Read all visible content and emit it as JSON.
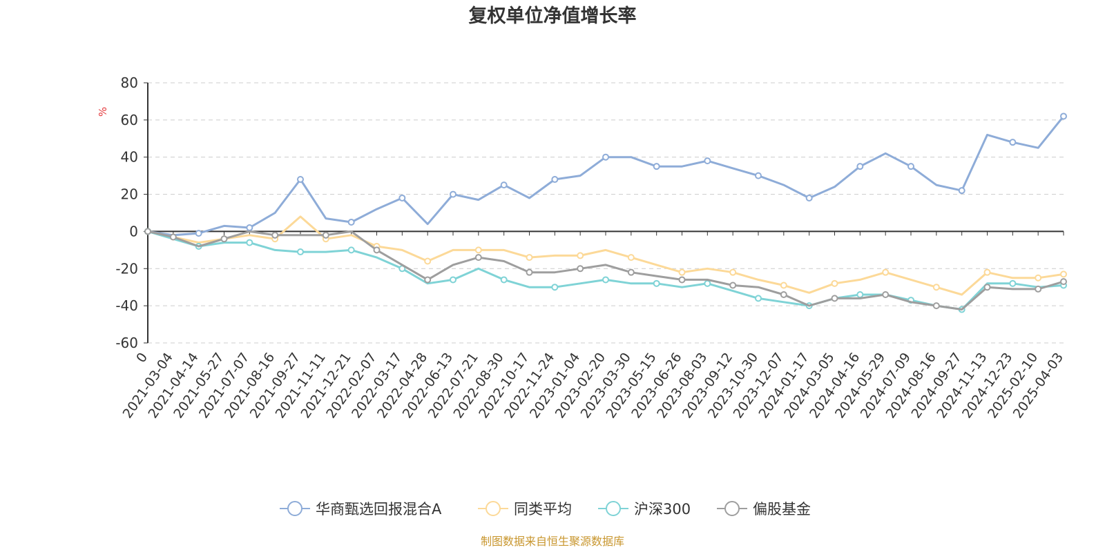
{
  "colors": {
    "fund": "#8eacd8",
    "peer": "#fcd998",
    "csi300": "#7fd3d6",
    "equity": "#9e9e9e",
    "unit": "#e4393c",
    "source": "#c8962e",
    "axis": "#333333",
    "grid": "#cccccc"
  },
  "chart_data": {
    "type": "line",
    "title": "复权单位净值增长率",
    "ylabel": "%",
    "ylim": [
      -60,
      80
    ],
    "yticks": [
      -60,
      -40,
      -20,
      0,
      20,
      40,
      60,
      80
    ],
    "x": [
      "0",
      "2021-03-04",
      "2021-04-14",
      "2021-05-27",
      "2021-07-07",
      "2021-08-16",
      "2021-09-27",
      "2021-11-11",
      "2021-12-21",
      "2022-02-07",
      "2022-03-17",
      "2022-04-28",
      "2022-06-13",
      "2022-07-21",
      "2022-08-30",
      "2022-10-17",
      "2022-11-24",
      "2023-01-04",
      "2023-02-20",
      "2023-03-30",
      "2023-05-15",
      "2023-06-26",
      "2023-08-03",
      "2023-09-12",
      "2023-10-30",
      "2023-12-07",
      "2024-01-17",
      "2024-03-05",
      "2024-04-16",
      "2024-05-29",
      "2024-07-09",
      "2024-08-16",
      "2024-09-27",
      "2024-11-13",
      "2024-12-23",
      "2025-02-10",
      "2025-04-03"
    ],
    "grid": true,
    "legend_position": "bottom",
    "series": [
      {
        "name": "华商甄选回报混合A",
        "color_key": "fund",
        "values": [
          0,
          -2,
          -1,
          3,
          2,
          10,
          28,
          7,
          5,
          12,
          18,
          4,
          20,
          17,
          25,
          18,
          28,
          30,
          40,
          40,
          35,
          35,
          38,
          34,
          30,
          25,
          18,
          24,
          35,
          42,
          35,
          25,
          22,
          52,
          48,
          45,
          62
        ]
      },
      {
        "name": "同类平均",
        "color_key": "peer",
        "values": [
          0,
          -3,
          -6,
          -4,
          -2,
          -4,
          8,
          -4,
          -2,
          -8,
          -10,
          -16,
          -10,
          -10,
          -10,
          -14,
          -13,
          -13,
          -10,
          -14,
          -18,
          -22,
          -20,
          -22,
          -26,
          -29,
          -33,
          -28,
          -26,
          -22,
          -26,
          -30,
          -34,
          -22,
          -25,
          -25,
          -23
        ]
      },
      {
        "name": "沪深300",
        "color_key": "csi300",
        "values": [
          0,
          -4,
          -8,
          -6,
          -6,
          -10,
          -11,
          -11,
          -10,
          -14,
          -20,
          -28,
          -26,
          -20,
          -26,
          -30,
          -30,
          -28,
          -26,
          -28,
          -28,
          -30,
          -28,
          -32,
          -36,
          -38,
          -40,
          -36,
          -34,
          -34,
          -37,
          -40,
          -42,
          -28,
          -28,
          -30,
          -29
        ]
      },
      {
        "name": "偏股基金",
        "color_key": "equity",
        "values": [
          0,
          -3,
          -8,
          -4,
          0,
          -2,
          -2,
          -2,
          0,
          -10,
          -18,
          -26,
          -18,
          -14,
          -16,
          -22,
          -22,
          -20,
          -18,
          -22,
          -24,
          -26,
          -26,
          -29,
          -30,
          -34,
          -40,
          -36,
          -36,
          -34,
          -38,
          -40,
          -42,
          -30,
          -31,
          -31,
          -27
        ]
      }
    ]
  },
  "source_text": "制图数据来自恒生聚源数据库"
}
